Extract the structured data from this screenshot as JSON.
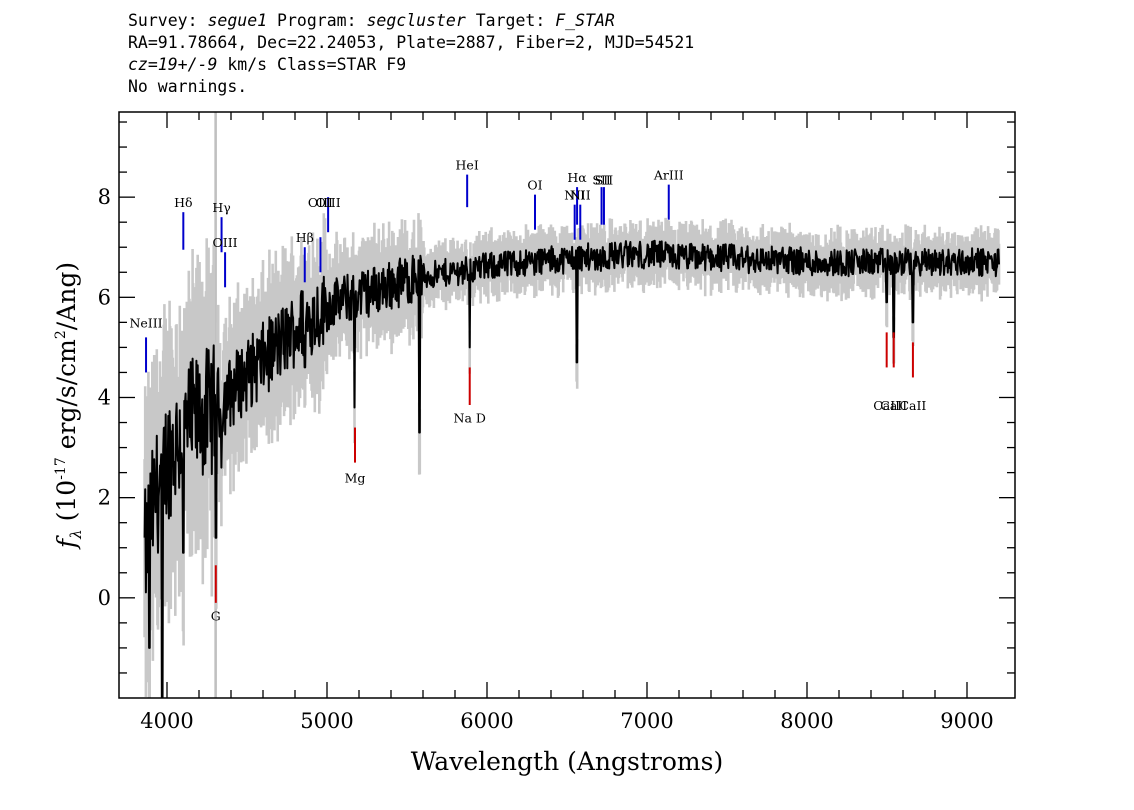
{
  "header": {
    "survey_label": "Survey:",
    "survey": "segue1",
    "program_label": "Program:",
    "program": "segcluster",
    "target_label": "Target:",
    "target": "F_STAR",
    "line2": "RA=91.78664, Dec=22.24053, Plate=2887, Fiber=2, MJD=54521",
    "cz": "cz=19+/-9",
    "cz_units_class": "km/s Class=STAR F9",
    "warnings": "No warnings."
  },
  "chart_data": {
    "type": "line",
    "xlabel": "Wavelength (Angstroms)",
    "ylabel": "f_λ (10^-17 erg/s/cm^2/Ang)",
    "xlim": [
      3700,
      9300
    ],
    "ylim": [
      -2,
      9.7
    ],
    "x_ticks": [
      4000,
      5000,
      6000,
      7000,
      8000,
      9000
    ],
    "y_ticks": [
      0,
      2,
      4,
      6,
      8
    ],
    "grid": false,
    "masked_region": [
      4296,
      4312
    ],
    "series": [
      {
        "style": "black-smoothed",
        "x": [
          3860,
          3880,
          3900,
          3930,
          3960,
          4000,
          4040,
          4080,
          4120,
          4160,
          4200,
          4250,
          4300,
          4350,
          4400,
          4450,
          4500,
          4550,
          4600,
          4650,
          4700,
          4750,
          4800,
          4850,
          4900,
          4950,
          5000,
          5050,
          5100,
          5150,
          5200,
          5250,
          5300,
          5350,
          5400,
          5450,
          5500,
          5550,
          5600,
          5650,
          5700,
          5750,
          5800,
          5850,
          5900,
          5950,
          6000,
          6050,
          6100,
          6150,
          6200,
          6250,
          6300,
          6350,
          6400,
          6450,
          6500,
          6550,
          6600,
          6650,
          6700,
          6750,
          6800,
          6850,
          6900,
          6950,
          7000,
          7100,
          7200,
          7300,
          7400,
          7500,
          7600,
          7700,
          7800,
          7900,
          8000,
          8100,
          8200,
          8300,
          8400,
          8500,
          8600,
          8700,
          8800,
          8900,
          9000,
          9100,
          9200
        ],
        "y": [
          0.8,
          1.2,
          1.6,
          2.0,
          2.4,
          2.8,
          3.0,
          3.2,
          3.4,
          3.5,
          3.6,
          3.7,
          3.8,
          3.95,
          4.1,
          4.3,
          4.45,
          4.6,
          4.75,
          4.9,
          5.05,
          5.2,
          5.35,
          5.5,
          5.6,
          5.7,
          5.8,
          5.9,
          5.95,
          6.0,
          6.05,
          6.1,
          6.15,
          6.2,
          6.25,
          6.3,
          6.35,
          6.4,
          6.4,
          6.45,
          6.45,
          6.5,
          6.5,
          6.55,
          6.55,
          6.6,
          6.6,
          6.65,
          6.65,
          6.65,
          6.7,
          6.7,
          6.7,
          6.75,
          6.75,
          6.75,
          6.75,
          6.8,
          6.8,
          6.8,
          6.8,
          6.8,
          6.85,
          6.85,
          6.85,
          6.85,
          6.85,
          6.85,
          6.8,
          6.8,
          6.8,
          6.8,
          6.75,
          6.75,
          6.75,
          6.75,
          6.7,
          6.7,
          6.7,
          6.7,
          6.7,
          6.7,
          6.7,
          6.7,
          6.7,
          6.7,
          6.7,
          6.7,
          6.7
        ]
      }
    ],
    "absorption_dips": [
      {
        "x": 3890,
        "y": -1.0
      },
      {
        "x": 3970,
        "y": -2.0
      },
      {
        "x": 4102,
        "y": 0.9
      },
      {
        "x": 4307,
        "y": 1.2
      },
      {
        "x": 4340,
        "y": 2.6
      },
      {
        "x": 4861,
        "y": 4.6
      },
      {
        "x": 5172,
        "y": 3.8
      },
      {
        "x": 5577,
        "y": 3.3
      },
      {
        "x": 5892,
        "y": 5.0
      },
      {
        "x": 6563,
        "y": 4.7
      },
      {
        "x": 8498,
        "y": 5.9
      },
      {
        "x": 8542,
        "y": 5.2
      },
      {
        "x": 8662,
        "y": 5.5
      }
    ],
    "emission_lines": [
      {
        "label": "NeIII",
        "x": 3869,
        "y0": 4.5,
        "y1": 5.2,
        "label_y": 5.4
      },
      {
        "label": "Hδ",
        "x": 4102,
        "y0": 6.95,
        "y1": 7.7,
        "label_y": 7.8
      },
      {
        "label": "Hγ",
        "x": 4341,
        "y0": 6.9,
        "y1": 7.6,
        "label_y": 7.7
      },
      {
        "label": "OIII",
        "x": 4363,
        "y0": 6.2,
        "y1": 6.9,
        "label_y": 7.0
      },
      {
        "label": "Hβ",
        "x": 4861,
        "y0": 6.3,
        "y1": 7.0,
        "label_y": 7.1
      },
      {
        "label": "OIII",
        "x": 4959,
        "y0": 6.5,
        "y1": 7.2,
        "label_y": 7.8
      },
      {
        "label": "OIII",
        "x": 5007,
        "y0": 7.3,
        "y1": 8.0,
        "label_y": 7.8
      },
      {
        "label": "HeI",
        "x": 5876,
        "y0": 7.8,
        "y1": 8.45,
        "label_y": 8.55
      },
      {
        "label": "OI",
        "x": 6300,
        "y0": 7.35,
        "y1": 8.05,
        "label_y": 8.15
      },
      {
        "label": "NII",
        "x": 6548,
        "y0": 7.15,
        "y1": 7.85,
        "label_y": 7.95
      },
      {
        "label": "Hα",
        "x": 6563,
        "y0": 7.45,
        "y1": 8.2,
        "label_y": 8.3
      },
      {
        "label": "NII",
        "x": 6583,
        "y0": 7.15,
        "y1": 7.85,
        "label_y": 7.95
      },
      {
        "label": "SII",
        "x": 6716,
        "y0": 7.45,
        "y1": 8.2,
        "label_y": 8.25
      },
      {
        "label": "SII",
        "x": 6731,
        "y0": 7.45,
        "y1": 8.2,
        "label_y": 8.25
      },
      {
        "label": "ArIII",
        "x": 7136,
        "y0": 7.55,
        "y1": 8.25,
        "label_y": 8.35
      }
    ],
    "absorption_markers": [
      {
        "label": "G",
        "x": 4305,
        "y0": -0.1,
        "y1": 0.65,
        "label_y": -0.45
      },
      {
        "label": "Mg",
        "x": 5175,
        "y0": 2.7,
        "y1": 3.4,
        "label_y": 2.3
      },
      {
        "label": "Na D",
        "x": 5892,
        "y0": 3.85,
        "y1": 4.6,
        "label_y": 3.5
      },
      {
        "label": "CaII",
        "x": 8498,
        "y0": 4.6,
        "y1": 5.3,
        "label_y": 3.75
      },
      {
        "label": "CaII",
        "x": 8542,
        "y0": 4.6,
        "y1": 5.3,
        "label_y": 3.75
      },
      {
        "label": "CaII",
        "x": 8662,
        "y0": 4.4,
        "y1": 5.1,
        "label_y": 3.75
      }
    ],
    "colors": {
      "flux": "#000000",
      "error_band": "#c8c8c8",
      "emission_marker": "#0000cc",
      "absorption_marker": "#cc0000",
      "masked_band": "#c0c0c0"
    }
  }
}
